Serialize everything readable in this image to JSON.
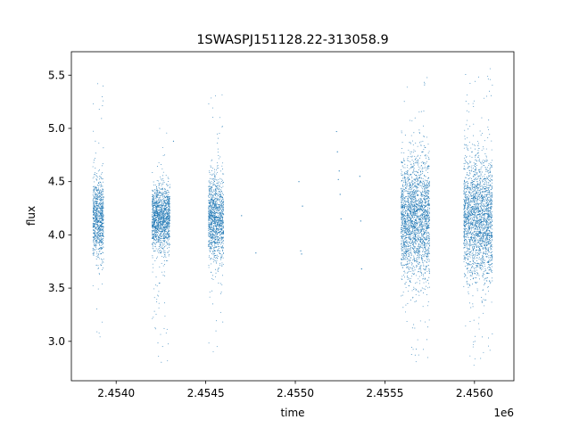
{
  "chart_data": {
    "type": "scatter",
    "title": "1SWASPJ151128.22-313058.9",
    "xlabel": "time",
    "ylabel": "flux",
    "x_offset_label": "1e6",
    "xlim": [
      2453750,
      2456220
    ],
    "ylim": [
      2.63,
      5.72
    ],
    "xticks": [
      2454000,
      2454500,
      2455000,
      2455500,
      2456000
    ],
    "xtick_labels": [
      "2.4540",
      "2.4545",
      "2.4550",
      "2.4555",
      "2.4560"
    ],
    "yticks": [
      3.0,
      3.5,
      4.0,
      4.5,
      5.0,
      5.5
    ],
    "ytick_labels": [
      "3.0",
      "3.5",
      "4.0",
      "4.5",
      "5.0",
      "5.5"
    ],
    "grid": false,
    "marker_color": "#1f77b4",
    "observing_seasons": [
      {
        "x_start": 2453870,
        "x_end": 2453930,
        "flux_center": 4.15,
        "flux_spread": 0.18,
        "flux_min": 2.8,
        "flux_max": 5.48
      },
      {
        "x_start": 2454200,
        "x_end": 2454300,
        "flux_center": 4.15,
        "flux_spread": 0.15,
        "flux_min": 2.78,
        "flux_max": 5.05
      },
      {
        "x_start": 2454515,
        "x_end": 2454600,
        "flux_center": 4.15,
        "flux_spread": 0.2,
        "flux_min": 2.8,
        "flux_max": 5.4
      },
      {
        "x_start": 2455590,
        "x_end": 2455750,
        "flux_center": 4.15,
        "flux_spread": 0.28,
        "flux_min": 2.78,
        "flux_max": 5.52
      },
      {
        "x_start": 2455940,
        "x_end": 2456100,
        "flux_center": 4.15,
        "flux_spread": 0.28,
        "flux_min": 2.77,
        "flux_max": 5.58
      }
    ],
    "sparse_points": [
      {
        "x": 2454700,
        "y": 4.18
      },
      {
        "x": 2455020,
        "y": 4.5
      },
      {
        "x": 2455040,
        "y": 4.27
      },
      {
        "x": 2455030,
        "y": 3.85
      },
      {
        "x": 2455035,
        "y": 3.82
      },
      {
        "x": 2455230,
        "y": 4.97
      },
      {
        "x": 2455235,
        "y": 4.78
      },
      {
        "x": 2455240,
        "y": 4.52
      },
      {
        "x": 2455250,
        "y": 4.38
      },
      {
        "x": 2455255,
        "y": 4.15
      },
      {
        "x": 2455245,
        "y": 4.6
      },
      {
        "x": 2455360,
        "y": 4.55
      },
      {
        "x": 2455365,
        "y": 4.13
      },
      {
        "x": 2455370,
        "y": 3.68
      },
      {
        "x": 2454320,
        "y": 4.88
      },
      {
        "x": 2454780,
        "y": 3.83
      }
    ]
  }
}
